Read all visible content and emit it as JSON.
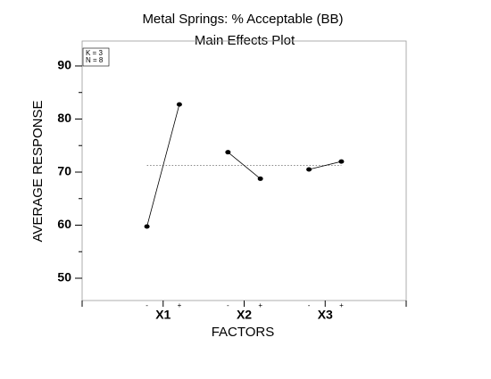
{
  "chart_data": {
    "type": "main_effects",
    "title": "Metal Springs: % Acceptable (BB)",
    "subtitle": "Main Effects Plot",
    "annotations": [
      "K = 3",
      "N = 8"
    ],
    "xlabel": "FACTORS",
    "ylabel": "AVERAGE RESPONSE",
    "levels": [
      "-",
      "+"
    ],
    "factors": [
      {
        "name": "X1",
        "values": [
          59.75,
          82.75
        ]
      },
      {
        "name": "X2",
        "values": [
          73.75,
          68.75
        ]
      },
      {
        "name": "X3",
        "values": [
          70.5,
          72.0
        ]
      }
    ],
    "grand_mean": 71.25,
    "ylim": [
      45.8,
      94.7
    ],
    "yticks": [
      50,
      60,
      70,
      80,
      90
    ],
    "minor_yticks": [
      55,
      65,
      75,
      85
    ],
    "color": "#000000"
  }
}
